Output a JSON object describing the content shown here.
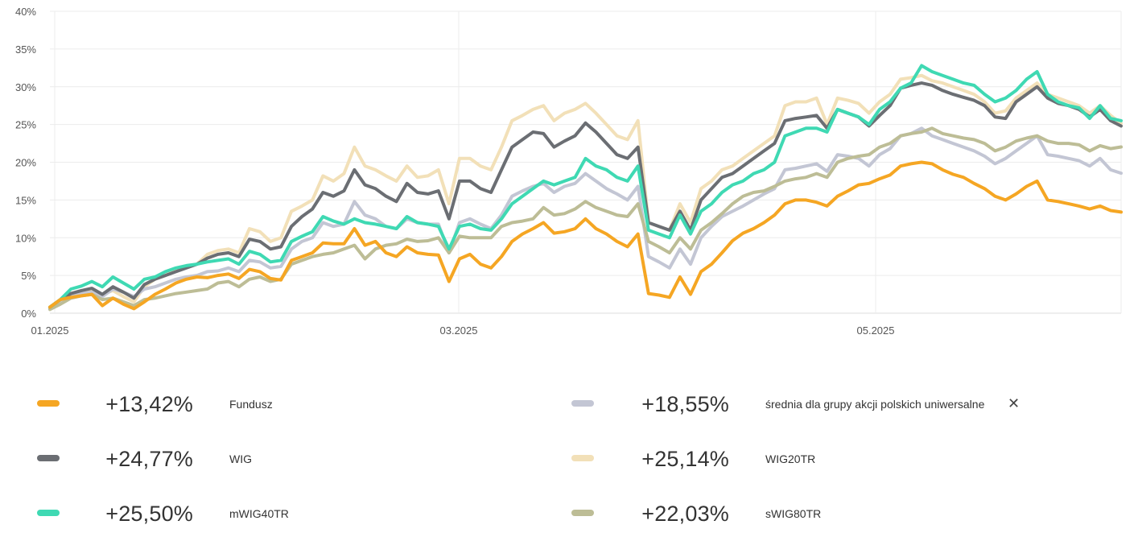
{
  "chart_data": {
    "type": "line",
    "title": "",
    "xlabel": "",
    "ylabel": "",
    "ylim": [
      0,
      40
    ],
    "yticks": [
      "0%",
      "5%",
      "10%",
      "15%",
      "20%",
      "25%",
      "30%",
      "35%",
      "40%"
    ],
    "xticks": [
      "01.2025",
      "03.2025",
      "05.2025"
    ],
    "grid": true,
    "series": [
      {
        "name": "Fundusz",
        "color": "#f5a623",
        "total": "+13,42%",
        "values": [
          0.8,
          1.8,
          2.1,
          2.3,
          2.5,
          1.0,
          2.0,
          1.2,
          0.6,
          1.5,
          2.5,
          3.2,
          4.0,
          4.5,
          4.8,
          4.7,
          5.0,
          5.2,
          4.6,
          5.8,
          5.5,
          4.6,
          4.4,
          7.0,
          7.5,
          8.0,
          9.3,
          9.2,
          9.2,
          11.2,
          9.0,
          9.5,
          8.0,
          7.5,
          8.8,
          8.0,
          7.8,
          7.7,
          4.2,
          7.2,
          7.8,
          6.5,
          6.0,
          7.5,
          9.5,
          10.5,
          11.2,
          12.0,
          10.6,
          10.8,
          11.2,
          12.5,
          11.2,
          10.5,
          9.5,
          8.8,
          10.5,
          2.6,
          2.4,
          2.1,
          4.8,
          2.5,
          5.5,
          6.5,
          8.0,
          9.6,
          10.6,
          11.2,
          12.0,
          13.0,
          14.5,
          15.0,
          15.0,
          14.7,
          14.2,
          15.5,
          16.2,
          17.0,
          17.2,
          17.8,
          18.3,
          19.5,
          19.8,
          20.0,
          19.8,
          19.0,
          18.4,
          18.0,
          17.2,
          16.5,
          15.5,
          15.0,
          15.8,
          16.8,
          17.5,
          15.0,
          14.8,
          14.5,
          14.2,
          13.8,
          14.2,
          13.6,
          13.4
        ]
      },
      {
        "name": "WIG",
        "color": "#6b6e73",
        "total": "+24,77%",
        "values": [
          0.8,
          1.8,
          2.6,
          3.0,
          3.3,
          2.5,
          3.5,
          2.8,
          2.0,
          3.8,
          4.5,
          5.0,
          5.5,
          6.0,
          6.5,
          7.3,
          7.8,
          8.0,
          7.5,
          9.8,
          9.5,
          8.5,
          8.8,
          11.5,
          12.8,
          13.8,
          16.0,
          15.5,
          16.2,
          19.0,
          17.0,
          16.5,
          15.5,
          14.8,
          17.2,
          16.0,
          15.8,
          16.2,
          12.5,
          17.5,
          17.5,
          16.5,
          16.0,
          19.0,
          22.0,
          23.0,
          24.0,
          23.8,
          22.0,
          22.8,
          23.5,
          25.2,
          24.0,
          22.5,
          21.0,
          20.5,
          22.0,
          12.0,
          11.5,
          11.0,
          13.5,
          11.0,
          15.0,
          16.5,
          18.0,
          18.5,
          19.5,
          20.5,
          21.5,
          22.5,
          25.5,
          25.8,
          26.0,
          26.2,
          24.5,
          27.0,
          26.5,
          26.0,
          24.8,
          26.2,
          27.5,
          29.8,
          30.2,
          30.5,
          30.2,
          29.5,
          29.0,
          28.6,
          28.2,
          27.5,
          26.0,
          25.8,
          28.0,
          29.0,
          30.0,
          28.5,
          27.8,
          27.5,
          27.0,
          26.0,
          27.0,
          25.5,
          24.8
        ]
      },
      {
        "name": "mWIG40TR",
        "color": "#3fd9b3",
        "total": "+25,50%",
        "values": [
          0.8,
          1.8,
          3.2,
          3.6,
          4.2,
          3.5,
          4.8,
          4.0,
          3.2,
          4.5,
          4.8,
          5.5,
          6.0,
          6.3,
          6.5,
          6.8,
          7.0,
          7.2,
          6.5,
          8.2,
          7.8,
          6.8,
          7.0,
          9.5,
          10.2,
          10.8,
          12.8,
          12.2,
          11.8,
          12.5,
          12.0,
          11.8,
          11.5,
          11.2,
          12.8,
          12.0,
          11.8,
          11.5,
          8.5,
          11.5,
          11.8,
          11.2,
          11.0,
          12.5,
          14.5,
          15.5,
          16.5,
          17.5,
          17.0,
          17.5,
          18.0,
          20.5,
          19.5,
          19.0,
          18.0,
          17.5,
          19.5,
          11.0,
          10.5,
          10.0,
          13.0,
          10.5,
          13.5,
          14.5,
          16.0,
          17.0,
          17.5,
          18.5,
          19.0,
          20.0,
          23.5,
          24.0,
          24.5,
          24.5,
          24.0,
          27.0,
          26.5,
          26.0,
          25.0,
          27.0,
          28.0,
          29.8,
          30.5,
          32.8,
          32.0,
          31.5,
          31.0,
          30.5,
          30.2,
          29.0,
          28.0,
          28.5,
          29.5,
          31.0,
          32.0,
          29.0,
          28.0,
          27.5,
          27.2,
          25.8,
          27.5,
          25.8,
          25.5
        ]
      },
      {
        "name": "średnia dla grupy akcji polskich uniwersalne",
        "color": "#c3c6d4",
        "total": "+18,55%",
        "values": [
          0.6,
          1.6,
          2.3,
          2.6,
          2.8,
          2.2,
          3.2,
          2.8,
          2.2,
          3.2,
          3.5,
          4.0,
          4.5,
          4.8,
          5.0,
          5.5,
          5.6,
          6.0,
          5.5,
          7.0,
          6.8,
          6.0,
          6.2,
          8.5,
          9.5,
          10.0,
          12.0,
          11.5,
          11.8,
          14.8,
          13.0,
          12.5,
          11.5,
          11.2,
          12.5,
          12.0,
          11.8,
          11.8,
          8.0,
          12.0,
          12.5,
          11.8,
          11.2,
          13.0,
          15.5,
          16.2,
          16.8,
          17.2,
          16.0,
          16.8,
          17.2,
          18.5,
          17.5,
          16.5,
          15.8,
          15.0,
          16.8,
          7.5,
          6.8,
          6.0,
          8.5,
          6.5,
          10.0,
          11.5,
          12.8,
          13.5,
          14.2,
          15.0,
          15.8,
          16.5,
          19.0,
          19.2,
          19.5,
          19.8,
          18.8,
          21.0,
          20.8,
          20.5,
          19.5,
          21.0,
          21.8,
          23.5,
          23.8,
          24.5,
          23.5,
          23.0,
          22.5,
          22.0,
          21.5,
          20.8,
          19.8,
          20.5,
          21.5,
          22.5,
          23.5,
          21.0,
          20.8,
          20.5,
          20.2,
          19.5,
          20.5,
          19.0,
          18.55
        ]
      },
      {
        "name": "WIG20TR",
        "color": "#f2e0b8",
        "total": "+25,14%",
        "values": [
          0.8,
          1.6,
          2.3,
          2.6,
          3.0,
          2.5,
          3.0,
          2.2,
          1.5,
          3.5,
          4.5,
          5.0,
          5.8,
          6.2,
          6.5,
          7.8,
          8.3,
          8.5,
          8.0,
          11.2,
          10.8,
          9.5,
          10.0,
          13.5,
          14.2,
          15.0,
          18.2,
          17.5,
          18.5,
          22.0,
          19.5,
          19.0,
          18.2,
          17.5,
          19.5,
          18.0,
          18.2,
          19.0,
          14.5,
          20.5,
          20.5,
          19.5,
          19.0,
          22.0,
          25.5,
          26.2,
          27.0,
          27.5,
          25.5,
          26.5,
          27.0,
          27.8,
          26.5,
          25.0,
          23.5,
          23.0,
          25.5,
          12.0,
          11.5,
          11.0,
          14.5,
          12.0,
          16.5,
          17.5,
          19.0,
          19.5,
          20.5,
          21.5,
          22.5,
          23.5,
          27.5,
          28.0,
          28.0,
          28.5,
          25.0,
          28.5,
          28.2,
          27.8,
          26.5,
          28.0,
          29.0,
          31.0,
          31.2,
          31.5,
          30.8,
          30.5,
          30.0,
          29.5,
          29.0,
          28.0,
          26.5,
          26.8,
          28.5,
          29.5,
          30.5,
          29.0,
          28.5,
          28.0,
          27.5,
          26.5,
          27.5,
          26.2,
          25.14
        ]
      },
      {
        "name": "sWIG80TR",
        "color": "#bdbd96",
        "total": "+22,03%",
        "values": [
          0.5,
          1.2,
          2.0,
          2.3,
          2.5,
          1.8,
          2.0,
          1.5,
          1.0,
          1.8,
          2.0,
          2.3,
          2.6,
          2.8,
          3.0,
          3.2,
          4.0,
          4.2,
          3.5,
          4.5,
          4.8,
          4.2,
          4.5,
          6.5,
          7.0,
          7.5,
          7.8,
          8.0,
          8.5,
          9.0,
          7.2,
          8.5,
          9.0,
          9.2,
          9.8,
          9.5,
          9.6,
          10.0,
          8.0,
          10.2,
          10.0,
          10.0,
          10.0,
          11.5,
          12.0,
          12.2,
          12.5,
          14.0,
          13.0,
          13.2,
          13.8,
          14.8,
          14.0,
          13.5,
          13.0,
          12.8,
          14.5,
          9.5,
          8.8,
          8.0,
          10.0,
          8.5,
          11.0,
          12.0,
          13.2,
          14.5,
          15.5,
          16.0,
          16.2,
          16.8,
          17.5,
          17.8,
          18.0,
          18.5,
          18.0,
          20.0,
          20.5,
          20.8,
          21.0,
          22.0,
          22.5,
          23.5,
          23.8,
          24.0,
          24.5,
          23.8,
          23.5,
          23.2,
          23.0,
          22.5,
          21.5,
          22.0,
          22.8,
          23.2,
          23.5,
          22.8,
          22.5,
          22.5,
          22.3,
          21.5,
          22.2,
          21.8,
          22.03
        ]
      }
    ]
  },
  "legend_close_label": "✕"
}
